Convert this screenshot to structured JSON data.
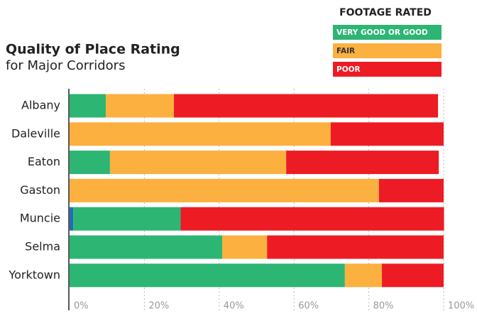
{
  "chart_data": {
    "type": "stacked-bar-horizontal",
    "title": "Quality of Place Rating",
    "subtitle": "for Major Corridors",
    "legend_title": "FOOTAGE RATED",
    "legend": "top-right",
    "categories": [
      "Albany",
      "Daleville",
      "Eaton",
      "Gaston",
      "Muncie",
      "Selma",
      "Yorktown"
    ],
    "series": [
      {
        "name": null,
        "color": "#1f6fb4",
        "values": [
          0,
          0,
          0,
          0,
          1.0,
          0,
          0
        ]
      },
      {
        "name": "VERY GOOD OR GOOD",
        "color": "#2db574",
        "values": [
          9.7,
          0,
          10.8,
          0,
          28.7,
          40.8,
          73.6
        ]
      },
      {
        "name": "FAIR",
        "color": "#fbb040",
        "values": [
          18.2,
          69.8,
          47.1,
          82.7,
          0,
          12.0,
          9.9
        ]
      },
      {
        "name": "POOR",
        "color": "#ed1c24",
        "values": [
          70.6,
          30.2,
          40.8,
          17.3,
          70.4,
          47.2,
          16.5
        ]
      }
    ],
    "xlim": [
      0,
      100
    ],
    "xticks": [
      {
        "value": 0,
        "label": "0%"
      },
      {
        "value": 20,
        "label": "20%"
      },
      {
        "value": 40,
        "label": "40%"
      },
      {
        "value": 60,
        "label": "60%"
      },
      {
        "value": 80,
        "label": "80%"
      },
      {
        "value": 100,
        "label": "100%"
      }
    ],
    "grid": true
  }
}
